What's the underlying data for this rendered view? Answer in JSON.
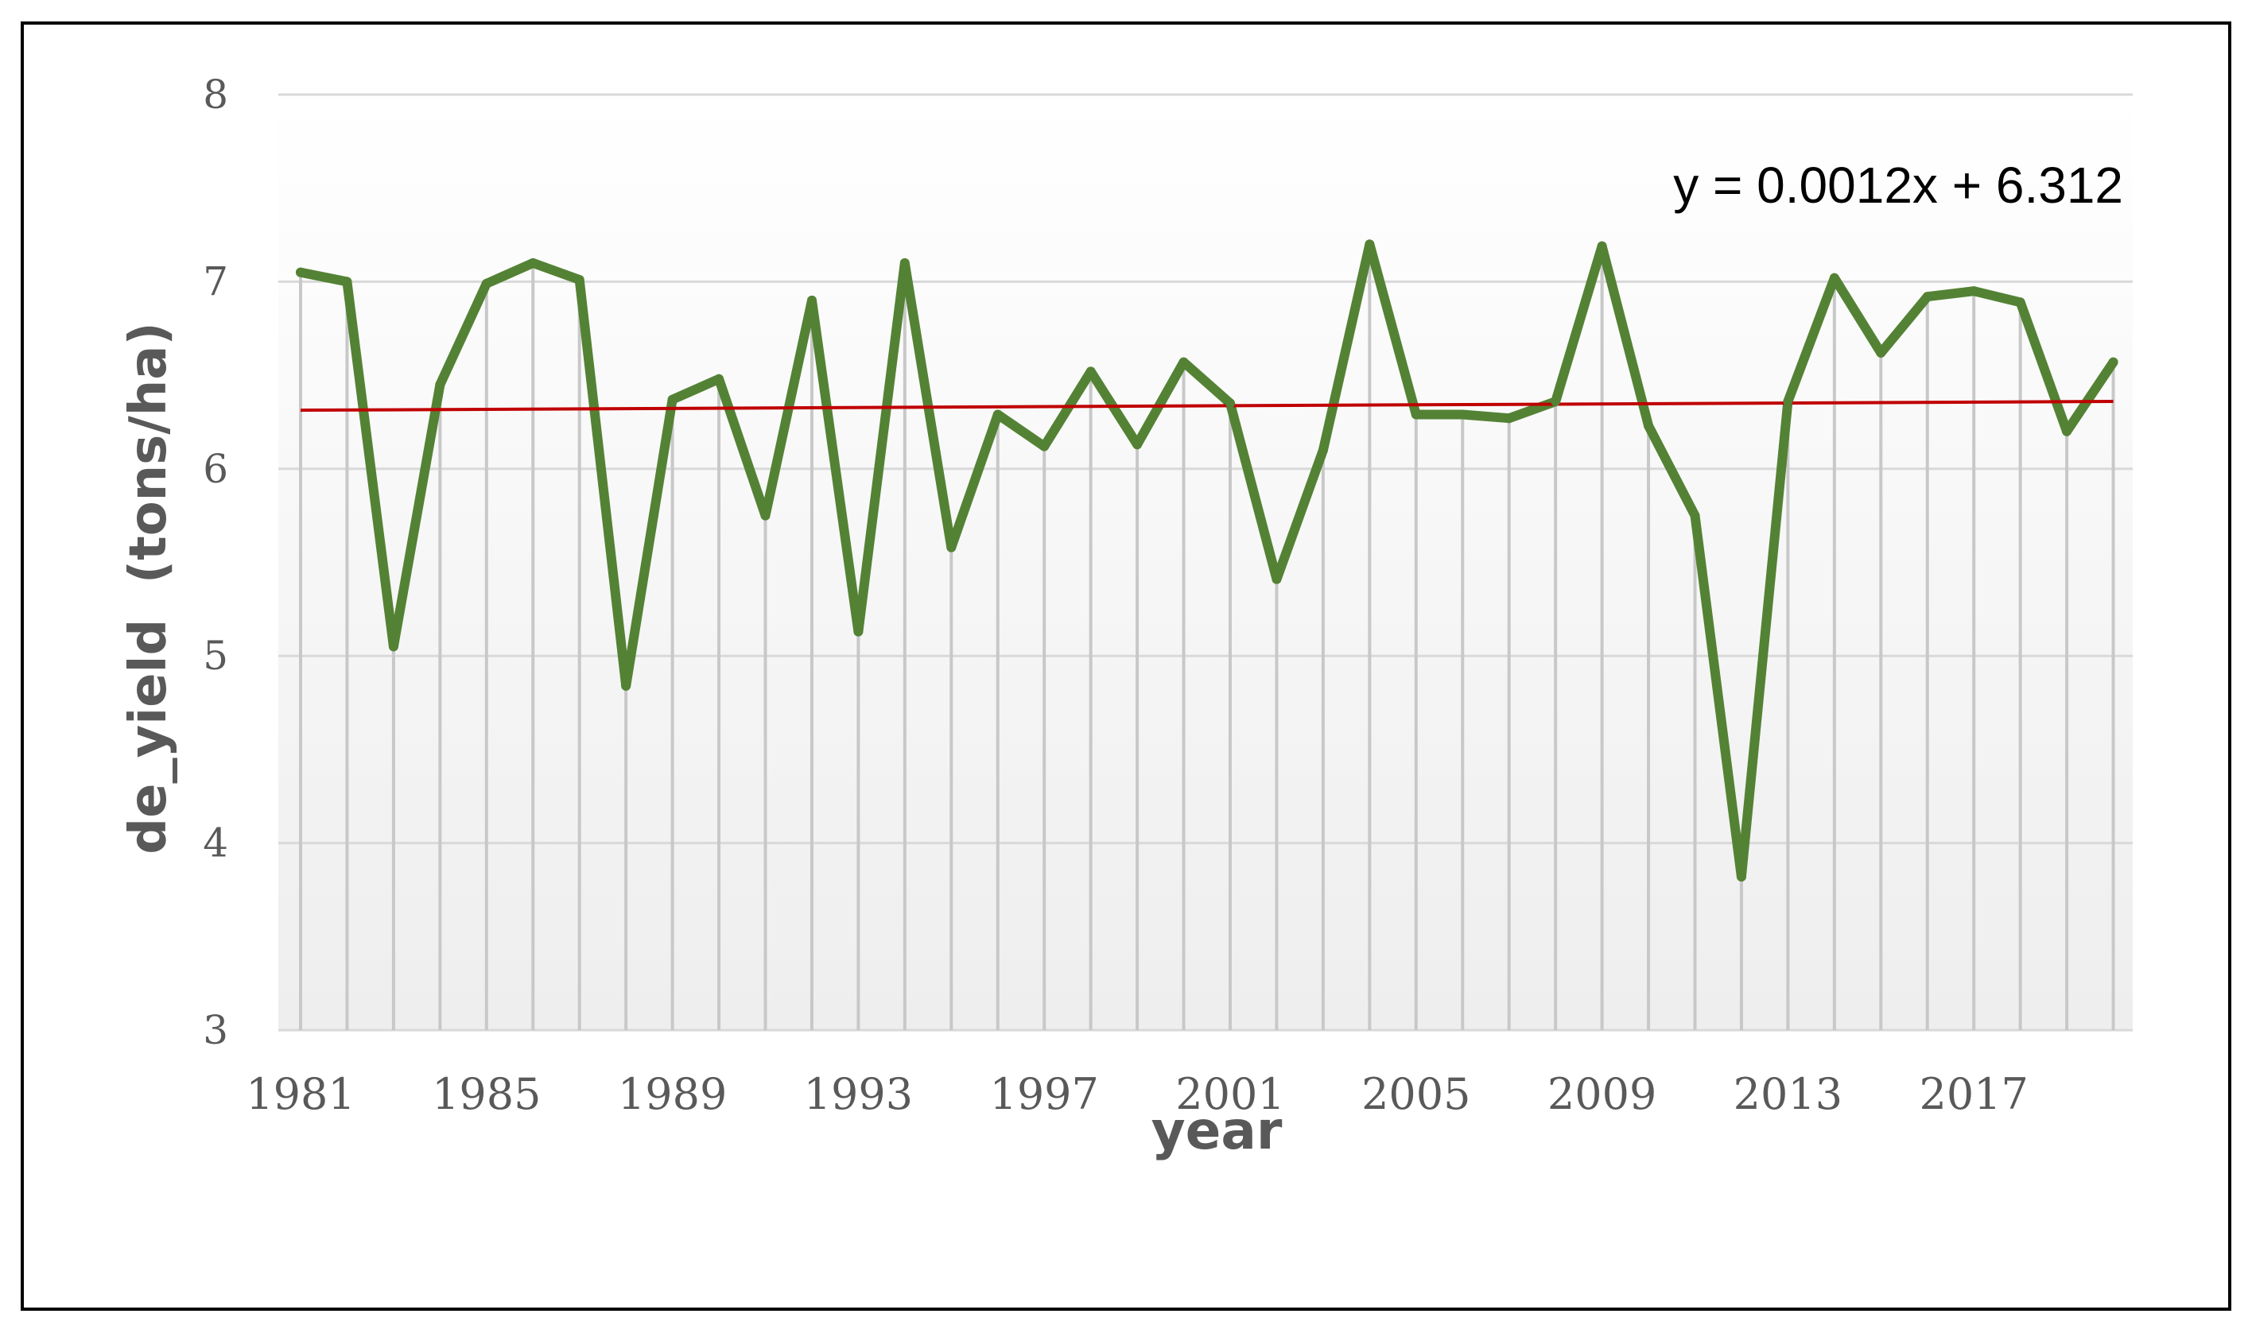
{
  "colors": {
    "frame": "#000000",
    "series": "#548235",
    "trendline": "#c00000",
    "grid": "#d9d9d9",
    "text": "#595959"
  },
  "chart_data": {
    "type": "line",
    "title": "",
    "xlabel": "year",
    "ylabel": "de_yield  (tons/ha)",
    "ylim": [
      3,
      8
    ],
    "yticks": [
      3,
      4,
      5,
      6,
      7,
      8
    ],
    "xtick_labels": [
      "1981",
      "1985",
      "1989",
      "1993",
      "1997",
      "2001",
      "2005",
      "2009",
      "2013",
      "2017"
    ],
    "x": [
      1981,
      1982,
      1983,
      1984,
      1985,
      1986,
      1987,
      1988,
      1989,
      1990,
      1991,
      1992,
      1993,
      1994,
      1995,
      1996,
      1997,
      1998,
      1999,
      2000,
      2001,
      2002,
      2003,
      2004,
      2005,
      2006,
      2007,
      2008,
      2009,
      2010,
      2011,
      2012,
      2013,
      2014,
      2015,
      2016,
      2017,
      2018,
      2019,
      2020
    ],
    "series": [
      {
        "values": [
          7.05,
          7.0,
          5.05,
          6.45,
          6.99,
          7.1,
          7.01,
          4.84,
          6.37,
          6.48,
          5.75,
          6.9,
          5.13,
          7.1,
          5.58,
          6.29,
          6.12,
          6.52,
          6.13,
          6.57,
          6.35,
          5.41,
          6.1,
          7.2,
          6.29,
          6.29,
          6.27,
          6.36,
          7.19,
          6.23,
          5.75,
          3.82,
          6.36,
          7.02,
          6.62,
          6.92,
          6.95,
          6.89,
          6.2,
          6.57
        ]
      }
    ],
    "trendline": {
      "equation": "y = 0.0012x + 6.312",
      "slope": 0.0012,
      "intercept": 6.312
    },
    "grid": true,
    "legend": "none"
  }
}
